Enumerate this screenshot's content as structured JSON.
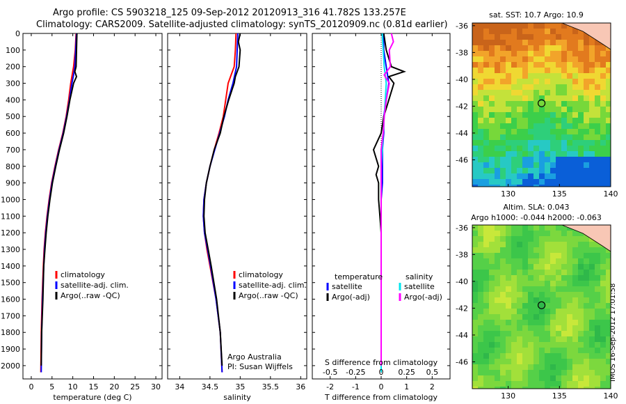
{
  "header": {
    "line1": "Argo profile: CS 5903218_125 09-Sep-2012 20120913_316 41.782S 133.257E",
    "line2": "Climatology: CARS2009. Satellite-adjusted climatology: synTS_20120909.nc (0.81d earlier)"
  },
  "stamp": "IMOS 16-Sep-2012 17:01:58",
  "colors": {
    "climatology": "#ff0000",
    "satellite": "#0000ff",
    "argo": "#000000",
    "sat_salinity": "#00e5ee",
    "argo_salinity": "#ff00ff"
  },
  "chart_data": [
    {
      "type": "line",
      "name": "temperature-profile",
      "xlabel": "temperature (deg C)",
      "ylabel": "",
      "xlim": [
        -2,
        31.5
      ],
      "ylim": [
        2080,
        0
      ],
      "xticks": [
        0,
        5,
        10,
        15,
        20,
        25,
        30
      ],
      "yticks": [
        0,
        100,
        200,
        300,
        400,
        500,
        600,
        700,
        800,
        900,
        1000,
        1100,
        1200,
        1300,
        1400,
        1500,
        1600,
        1700,
        1800,
        1900,
        2000
      ],
      "legend": [
        "climatology",
        "satellite-adj. clim.",
        "Argo(..raw -QC)"
      ],
      "series": [
        {
          "name": "climatology",
          "depth": [
            0,
            100,
            200,
            300,
            400,
            500,
            600,
            700,
            800,
            900,
            1000,
            1100,
            1200,
            1300,
            1400,
            1600,
            1800,
            2040
          ],
          "values": [
            10.8,
            10.6,
            10.2,
            9.5,
            9.0,
            8.4,
            7.6,
            6.6,
            5.7,
            4.9,
            4.3,
            3.8,
            3.4,
            3.1,
            2.9,
            2.6,
            2.4,
            2.3
          ]
        },
        {
          "name": "satellite-adj. clim.",
          "depth": [
            0,
            100,
            200,
            250,
            300,
            400,
            500,
            600,
            700,
            800,
            900,
            1000,
            1100,
            1200,
            1300,
            1400,
            1600,
            1800,
            2040
          ],
          "values": [
            10.9,
            10.7,
            10.5,
            10.2,
            9.8,
            9.2,
            8.5,
            7.7,
            6.7,
            5.8,
            5.0,
            4.4,
            3.9,
            3.5,
            3.2,
            3.0,
            2.7,
            2.5,
            2.4
          ]
        },
        {
          "name": "Argo(..raw -QC)",
          "depth": [
            0,
            100,
            200,
            230,
            260,
            300,
            400,
            500,
            600,
            700,
            800,
            900,
            1000,
            1100,
            1200,
            1300,
            1400,
            1600,
            1800,
            2000
          ],
          "values": [
            11.0,
            10.9,
            10.8,
            10.5,
            10.9,
            10.2,
            9.3,
            8.6,
            7.8,
            6.8,
            5.9,
            5.1,
            4.5,
            4.0,
            3.6,
            3.3,
            3.0,
            2.8,
            2.5,
            2.4
          ]
        }
      ]
    },
    {
      "type": "line",
      "name": "salinity-profile",
      "xlabel": "salinity",
      "xlim": [
        33.8,
        36.1
      ],
      "ylim": [
        2080,
        0
      ],
      "xticks": [
        34,
        34.5,
        35,
        35.5,
        36
      ],
      "legend": [
        "climatology",
        "satellite-adj. clim.",
        "Argo(..raw -QC)"
      ],
      "annotation": [
        "Argo Australia",
        "PI: Susan Wijffels"
      ],
      "series": [
        {
          "name": "climatology",
          "depth": [
            0,
            100,
            200,
            250,
            300,
            400,
            500,
            600,
            700,
            800,
            900,
            1000,
            1100,
            1200,
            1300,
            1400,
            1600,
            1800,
            2040
          ],
          "values": [
            34.93,
            34.92,
            34.9,
            34.85,
            34.8,
            34.76,
            34.72,
            34.65,
            34.57,
            34.5,
            34.44,
            34.4,
            34.39,
            34.41,
            34.45,
            34.5,
            34.6,
            34.67,
            34.7
          ]
        },
        {
          "name": "satellite-adj. clim.",
          "depth": [
            0,
            100,
            200,
            300,
            400,
            500,
            600,
            700,
            800,
            900,
            1000,
            1100,
            1200,
            1300,
            1400,
            1600,
            1800,
            2040
          ],
          "values": [
            34.96,
            34.95,
            34.94,
            34.88,
            34.8,
            34.74,
            34.66,
            34.58,
            34.5,
            34.44,
            34.4,
            34.39,
            34.41,
            34.46,
            34.51,
            34.6,
            34.67,
            34.7
          ]
        },
        {
          "name": "Argo(..raw -QC)",
          "depth": [
            0,
            50,
            100,
            200,
            260,
            300,
            400,
            500,
            600,
            700,
            800,
            900,
            1000,
            1100,
            1200,
            1300,
            1400,
            1600,
            1800,
            2000
          ],
          "values": [
            35.0,
            34.97,
            35.0,
            34.98,
            34.92,
            34.9,
            34.81,
            34.73,
            34.67,
            34.57,
            34.5,
            34.44,
            34.41,
            34.4,
            34.42,
            34.47,
            34.52,
            34.61,
            34.67,
            34.7
          ]
        }
      ]
    },
    {
      "type": "line",
      "name": "difference-profile",
      "xlabel": "T difference from climatology",
      "top_label": "S difference from climatology",
      "xlim": [
        -2.7,
        2.7
      ],
      "ylim": [
        2080,
        0
      ],
      "xticks": [
        -2,
        -1,
        0,
        1,
        2
      ],
      "top_ticks": [
        "-0.5",
        "-0.25",
        "0",
        "0.25",
        "0.5"
      ],
      "legend_titles": [
        "temperature",
        "salinity"
      ],
      "legend": [
        "satellite",
        "Argo(-adj)",
        "satellite",
        "Argo(-adj)"
      ],
      "series": [
        {
          "name": "temperature satellite",
          "depth": [
            0,
            100,
            200,
            300,
            400,
            500,
            600,
            700,
            800,
            900,
            1000,
            1200,
            1400,
            1600,
            1800,
            2040
          ],
          "values": [
            0.1,
            0.1,
            0.2,
            0.3,
            0.2,
            0.1,
            0.1,
            0.05,
            0.05,
            0.05,
            0.0,
            0.0,
            0.0,
            0.0,
            0.0,
            0.0
          ]
        },
        {
          "name": "temperature Argo(-adj)",
          "depth": [
            0,
            100,
            200,
            230,
            260,
            300,
            400,
            500,
            600,
            700,
            800,
            850,
            900,
            1000,
            1100,
            1200,
            1300,
            1400,
            1500,
            1600,
            1800,
            2000
          ],
          "values": [
            0.1,
            0.2,
            0.4,
            0.9,
            0.3,
            0.5,
            0.3,
            0.1,
            0.0,
            -0.3,
            -0.1,
            -0.2,
            -0.1,
            -0.1,
            -0.05,
            0.0,
            0.0,
            0.0,
            0.0,
            0.0,
            0.0,
            0.0
          ]
        },
        {
          "name": "salinity satellite",
          "depth": [
            0,
            100,
            200,
            300,
            400,
            500,
            600,
            700,
            800,
            900,
            1000,
            1200,
            1400,
            1600,
            1800,
            2040
          ],
          "values": [
            0.01,
            0.02,
            0.03,
            0.05,
            0.04,
            0.03,
            0.02,
            0.01,
            0.0,
            0.0,
            0.0,
            0.0,
            0.0,
            0.0,
            0.0,
            0.0
          ]
        },
        {
          "name": "salinity Argo(-adj)",
          "depth": [
            0,
            50,
            100,
            200,
            250,
            300,
            400,
            500,
            600,
            700,
            800,
            900,
            1000,
            1200,
            1400,
            1600,
            1800,
            2000
          ],
          "values": [
            0.1,
            0.12,
            0.08,
            0.09,
            0.03,
            0.08,
            0.05,
            0.03,
            0.02,
            0.0,
            0.0,
            0.0,
            0.0,
            0.0,
            0.0,
            0.0,
            0.0,
            0.0
          ]
        }
      ]
    },
    {
      "type": "heatmap",
      "name": "sst-map",
      "title": "sat. SST: 10.7 Argo: 10.9",
      "xlim": [
        126.5,
        140
      ],
      "ylim": [
        -48,
        -35.8
      ],
      "xticks": [
        130,
        135,
        140
      ],
      "yticks": [
        -36,
        -38,
        -40,
        -42,
        -44,
        -46
      ],
      "marker": {
        "lon": 133.257,
        "lat": -41.782
      }
    },
    {
      "type": "heatmap",
      "name": "sla-map",
      "title": "Altim. SLA: 0.043",
      "subtitle": "Argo h1000: -0.044 h2000: -0.063",
      "xlim": [
        126.5,
        140
      ],
      "ylim": [
        -48,
        -35.8
      ],
      "xticks": [
        130,
        135,
        140
      ],
      "yticks": [
        -36,
        -38,
        -40,
        -42,
        -44,
        -46
      ],
      "marker": {
        "lon": 133.257,
        "lat": -41.782
      }
    }
  ]
}
